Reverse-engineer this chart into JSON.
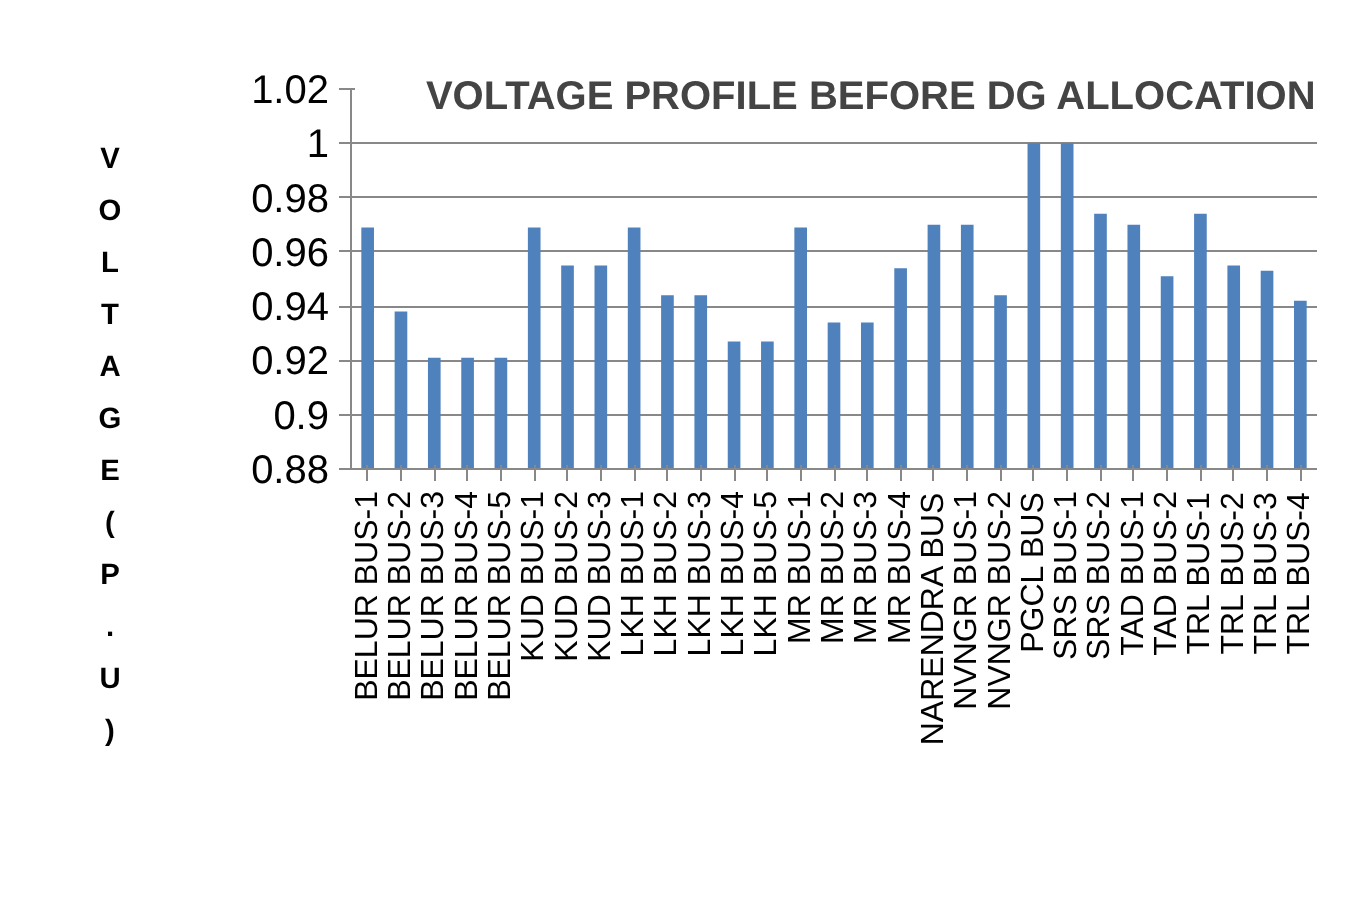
{
  "chart_data": {
    "type": "bar",
    "title": "VOLTAGE PROFILE BEFORE DG ALLOCATION",
    "ylabel": "VOLTAGE (P.U)",
    "categories": [
      "BELUR BUS-1",
      "BELUR BUS-2",
      "BELUR BUS-3",
      "BELUR BUS-4",
      "BELUR BUS-5",
      "KUD BUS-1",
      "KUD BUS-2",
      "KUD BUS-3",
      "LKH BUS-1",
      "LKH BUS-2",
      "LKH BUS-3",
      "LKH BUS-4",
      "LKH BUS-5",
      "MR BUS-1",
      "MR BUS-2",
      "MR BUS-3",
      "MR BUS-4",
      "NARENDRA BUS",
      "NVNGR BUS-1",
      "NVNGR BUS-2",
      "PGCL BUS",
      "SRS BUS-1",
      "SRS BUS-2",
      "TAD BUS-1",
      "TAD BUS-2",
      "TRL BUS-1",
      "TRL BUS-2",
      "TRL BUS-3",
      "TRL BUS-4"
    ],
    "values": [
      0.969,
      0.938,
      0.921,
      0.921,
      0.921,
      0.969,
      0.955,
      0.955,
      0.969,
      0.944,
      0.944,
      0.927,
      0.927,
      0.969,
      0.934,
      0.934,
      0.954,
      0.97,
      0.97,
      0.944,
      1.0,
      1.0,
      0.974,
      0.97,
      0.951,
      0.974,
      0.955,
      0.953,
      0.942
    ],
    "color": "#4f81bd",
    "ylim": [
      0.88,
      1.02
    ],
    "yticks": [
      0.88,
      0.9,
      0.92,
      0.94,
      0.96,
      0.98,
      1,
      1.02
    ],
    "grid": "y"
  }
}
